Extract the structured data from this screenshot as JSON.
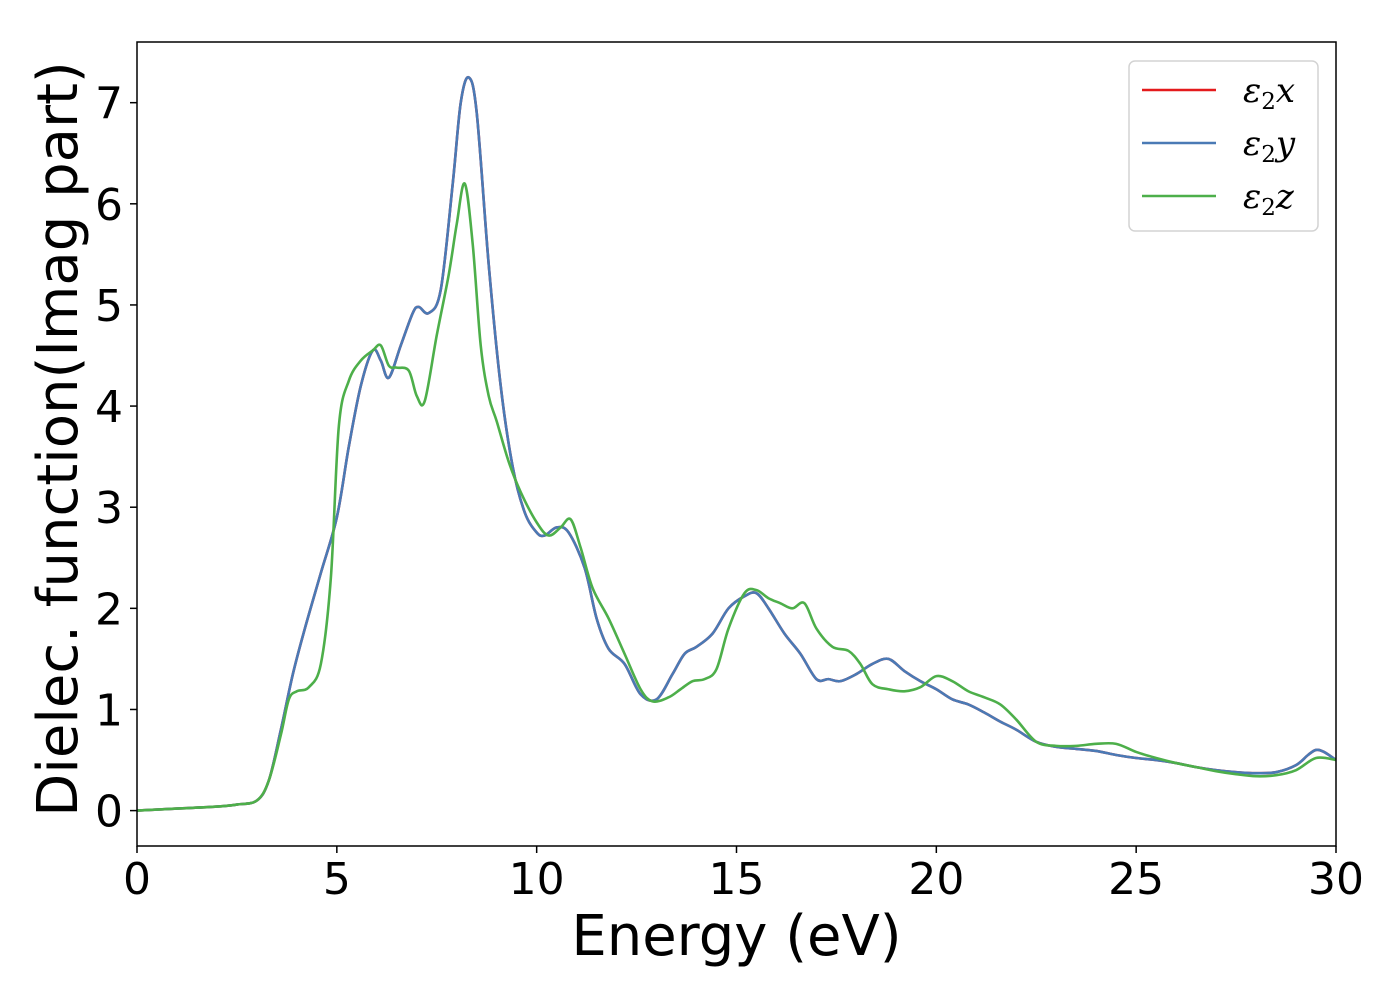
{
  "chart_data": {
    "type": "line",
    "xlabel": "Energy (eV)",
    "ylabel": "Dielec. function(Imag part)",
    "xlim": [
      0,
      30
    ],
    "ylim": [
      -0.35,
      7.6
    ],
    "xticks": [
      0,
      5,
      10,
      15,
      20,
      25,
      30
    ],
    "xtick_labels": [
      "0",
      "5",
      "10",
      "15",
      "20",
      "25",
      "30"
    ],
    "yticks": [
      0,
      1,
      2,
      3,
      4,
      5,
      6,
      7
    ],
    "ytick_labels": [
      "0",
      "1",
      "2",
      "3",
      "4",
      "5",
      "6",
      "7"
    ],
    "grid": false,
    "legend_position": "top-right",
    "series": [
      {
        "name": "ε2x",
        "legend_base": "ε",
        "legend_sub": "2",
        "legend_suffix": "x",
        "color": "#e41a1c",
        "x": [
          0,
          1,
          2,
          2.5,
          3,
          3.3,
          3.6,
          3.9,
          4.2,
          4.6,
          5,
          5.3,
          5.6,
          5.9,
          6.1,
          6.3,
          6.6,
          6.9,
          7.05,
          7.3,
          7.6,
          7.9,
          8.1,
          8.3,
          8.5,
          8.8,
          9.1,
          9.4,
          9.7,
          10,
          10.2,
          10.5,
          10.8,
          11.2,
          11.5,
          11.8,
          12.2,
          12.6,
          13,
          13.4,
          13.7,
          14,
          14.4,
          14.8,
          15.2,
          15.5,
          15.8,
          16.2,
          16.6,
          17,
          17.3,
          17.6,
          18,
          18.4,
          18.8,
          19.2,
          19.6,
          20,
          20.4,
          20.8,
          21.2,
          21.6,
          22,
          22.5,
          23,
          23.5,
          24,
          24.5,
          25,
          25.5,
          26,
          26.5,
          27,
          27.5,
          28,
          28.5,
          29,
          29.3,
          29.5,
          29.7,
          30
        ],
        "values": [
          0,
          0.02,
          0.04,
          0.06,
          0.1,
          0.3,
          0.8,
          1.35,
          1.8,
          2.35,
          2.9,
          3.6,
          4.2,
          4.55,
          4.45,
          4.28,
          4.6,
          4.92,
          4.98,
          4.92,
          5.15,
          6.2,
          7.0,
          7.25,
          6.9,
          5.4,
          4.2,
          3.4,
          2.95,
          2.75,
          2.72,
          2.8,
          2.75,
          2.4,
          1.9,
          1.6,
          1.45,
          1.15,
          1.1,
          1.35,
          1.55,
          1.62,
          1.75,
          2.0,
          2.12,
          2.15,
          2.0,
          1.75,
          1.55,
          1.3,
          1.3,
          1.28,
          1.35,
          1.45,
          1.5,
          1.38,
          1.28,
          1.2,
          1.1,
          1.05,
          0.97,
          0.88,
          0.8,
          0.68,
          0.63,
          0.61,
          0.59,
          0.55,
          0.52,
          0.5,
          0.47,
          0.43,
          0.4,
          0.38,
          0.37,
          0.38,
          0.45,
          0.55,
          0.6,
          0.58,
          0.5
        ]
      },
      {
        "name": "ε2y",
        "legend_base": "ε",
        "legend_sub": "2",
        "legend_suffix": "y",
        "color": "#4a7ab5",
        "x": [
          0,
          1,
          2,
          2.5,
          3,
          3.3,
          3.6,
          3.9,
          4.2,
          4.6,
          5,
          5.3,
          5.6,
          5.9,
          6.1,
          6.3,
          6.6,
          6.9,
          7.05,
          7.3,
          7.6,
          7.9,
          8.1,
          8.3,
          8.5,
          8.8,
          9.1,
          9.4,
          9.7,
          10,
          10.2,
          10.5,
          10.8,
          11.2,
          11.5,
          11.8,
          12.2,
          12.6,
          13,
          13.4,
          13.7,
          14,
          14.4,
          14.8,
          15.2,
          15.5,
          15.8,
          16.2,
          16.6,
          17,
          17.3,
          17.6,
          18,
          18.4,
          18.8,
          19.2,
          19.6,
          20,
          20.4,
          20.8,
          21.2,
          21.6,
          22,
          22.5,
          23,
          23.5,
          24,
          24.5,
          25,
          25.5,
          26,
          26.5,
          27,
          27.5,
          28,
          28.5,
          29,
          29.3,
          29.5,
          29.7,
          30
        ],
        "values": [
          0,
          0.02,
          0.04,
          0.06,
          0.1,
          0.3,
          0.8,
          1.35,
          1.8,
          2.35,
          2.9,
          3.6,
          4.2,
          4.55,
          4.45,
          4.28,
          4.6,
          4.92,
          4.98,
          4.92,
          5.15,
          6.2,
          7.0,
          7.25,
          6.9,
          5.4,
          4.2,
          3.4,
          2.95,
          2.75,
          2.72,
          2.8,
          2.75,
          2.4,
          1.9,
          1.6,
          1.45,
          1.15,
          1.1,
          1.35,
          1.55,
          1.62,
          1.75,
          2.0,
          2.12,
          2.15,
          2.0,
          1.75,
          1.55,
          1.3,
          1.3,
          1.28,
          1.35,
          1.45,
          1.5,
          1.38,
          1.28,
          1.2,
          1.1,
          1.05,
          0.97,
          0.88,
          0.8,
          0.68,
          0.63,
          0.61,
          0.59,
          0.55,
          0.52,
          0.5,
          0.47,
          0.43,
          0.4,
          0.38,
          0.37,
          0.38,
          0.45,
          0.55,
          0.6,
          0.58,
          0.5
        ]
      },
      {
        "name": "ε2z",
        "legend_base": "ε",
        "legend_sub": "2",
        "legend_suffix": "z",
        "color": "#4daf4a",
        "x": [
          0,
          1,
          2,
          2.5,
          3,
          3.3,
          3.6,
          3.8,
          4.0,
          4.3,
          4.6,
          4.85,
          5.05,
          5.3,
          5.6,
          5.9,
          6.1,
          6.3,
          6.5,
          6.8,
          7.0,
          7.2,
          7.5,
          7.8,
          8.0,
          8.2,
          8.4,
          8.6,
          8.8,
          9.0,
          9.3,
          9.6,
          10,
          10.3,
          10.6,
          10.85,
          11.1,
          11.4,
          11.8,
          12.2,
          12.6,
          12.9,
          13.3,
          13.6,
          13.9,
          14.2,
          14.5,
          14.8,
          15.2,
          15.5,
          15.8,
          16.1,
          16.4,
          16.7,
          17,
          17.4,
          17.8,
          18.1,
          18.4,
          18.8,
          19.2,
          19.6,
          20,
          20.4,
          20.8,
          21.2,
          21.6,
          22,
          22.5,
          23,
          23.5,
          24,
          24.5,
          25,
          25.5,
          26,
          26.5,
          27,
          27.5,
          28,
          28.5,
          29,
          29.5,
          30
        ],
        "values": [
          0,
          0.02,
          0.04,
          0.06,
          0.1,
          0.3,
          0.75,
          1.1,
          1.18,
          1.22,
          1.45,
          2.3,
          3.8,
          4.25,
          4.45,
          4.55,
          4.6,
          4.4,
          4.38,
          4.35,
          4.1,
          4.05,
          4.7,
          5.3,
          5.8,
          6.2,
          5.6,
          4.6,
          4.1,
          3.85,
          3.45,
          3.15,
          2.85,
          2.72,
          2.8,
          2.88,
          2.6,
          2.2,
          1.9,
          1.55,
          1.2,
          1.08,
          1.12,
          1.2,
          1.28,
          1.3,
          1.4,
          1.8,
          2.15,
          2.18,
          2.1,
          2.05,
          2.0,
          2.05,
          1.8,
          1.62,
          1.58,
          1.45,
          1.25,
          1.2,
          1.18,
          1.22,
          1.33,
          1.28,
          1.18,
          1.12,
          1.05,
          0.9,
          0.68,
          0.64,
          0.64,
          0.66,
          0.66,
          0.58,
          0.52,
          0.47,
          0.43,
          0.39,
          0.36,
          0.34,
          0.35,
          0.4,
          0.52,
          0.5
        ]
      }
    ]
  }
}
